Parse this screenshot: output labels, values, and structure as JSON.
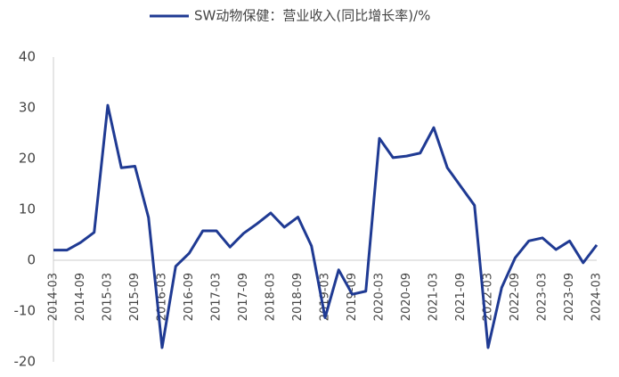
{
  "chart_data": {
    "type": "line",
    "categories": [
      "2014-03",
      null,
      "2014-09",
      null,
      "2015-03",
      null,
      "2015-09",
      null,
      "2016-03",
      null,
      "2016-09",
      null,
      "2017-03",
      null,
      "2017-09",
      null,
      "2018-03",
      null,
      "2018-09",
      null,
      "2019-03",
      null,
      "2019-09",
      null,
      "2020-03",
      null,
      "2020-09",
      null,
      "2021-03",
      null,
      "2021-09",
      null,
      "2022-03",
      null,
      "2022-09",
      null,
      "2023-03",
      null,
      "2023-09",
      null,
      "2024-03"
    ],
    "series": [
      {
        "name": "SW动物保健：营业收入(同比增长率)/%",
        "color": "#1f3a93",
        "values": [
          2.0,
          2.0,
          3.5,
          5.5,
          30.5,
          18.2,
          18.5,
          8.4,
          -17.2,
          -1.2,
          1.4,
          5.8,
          5.8,
          2.6,
          5.3,
          7.2,
          9.3,
          6.5,
          8.5,
          2.8,
          -11.3,
          -1.9,
          -6.7,
          -6.1,
          24.0,
          20.2,
          20.5,
          21.1,
          26.1,
          18.2,
          14.5,
          10.8,
          -17.2,
          -5.4,
          0.5,
          3.8,
          4.4,
          2.1,
          3.8,
          -0.5,
          3.0
        ]
      }
    ],
    "ylim": [
      -20,
      40
    ],
    "yticks": [
      -20,
      -10,
      0,
      10,
      20,
      30,
      40
    ],
    "grid": false,
    "legend": "top"
  }
}
